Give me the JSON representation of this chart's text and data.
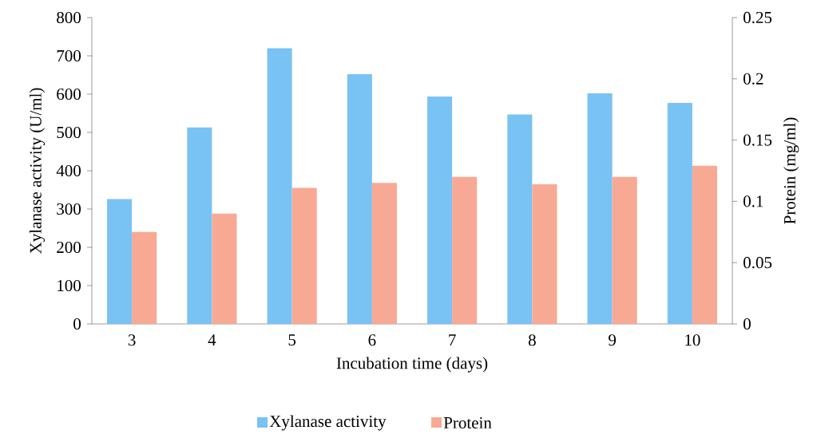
{
  "chart_data": {
    "type": "bar",
    "categories": [
      "3",
      "4",
      "5",
      "6",
      "7",
      "8",
      "9",
      "10"
    ],
    "xlabel": "Incubation time (days)",
    "ylabel": "Xylanase activity (U/ml)",
    "y2label": "Protein (mg/ml)",
    "series": [
      {
        "name": "Xylanase activity",
        "color": "#79c2f4",
        "values": [
          326,
          513,
          720,
          652,
          594,
          547,
          602,
          577
        ]
      },
      {
        "name": "Protein",
        "color": "#f8a994",
        "axis": "y2",
        "values": [
          0.075,
          0.09,
          0.111,
          0.115,
          0.12,
          0.114,
          0.12,
          0.129
        ]
      }
    ],
    "ylim": [
      0,
      800
    ],
    "yticks": [
      0,
      100,
      200,
      300,
      400,
      500,
      600,
      700,
      800
    ],
    "y2lim": [
      0,
      0.25
    ],
    "y2ticks": [
      0,
      {
        "value": 0.05,
        "label": "0.05"
      },
      {
        "value": 0.1,
        "label": "0.1"
      },
      {
        "value": 0.15,
        "label": "0.15"
      },
      {
        "value": 0.2,
        "label": "0.2"
      },
      {
        "value": 0.25,
        "label": "0.25"
      }
    ],
    "legend": "bottom"
  }
}
